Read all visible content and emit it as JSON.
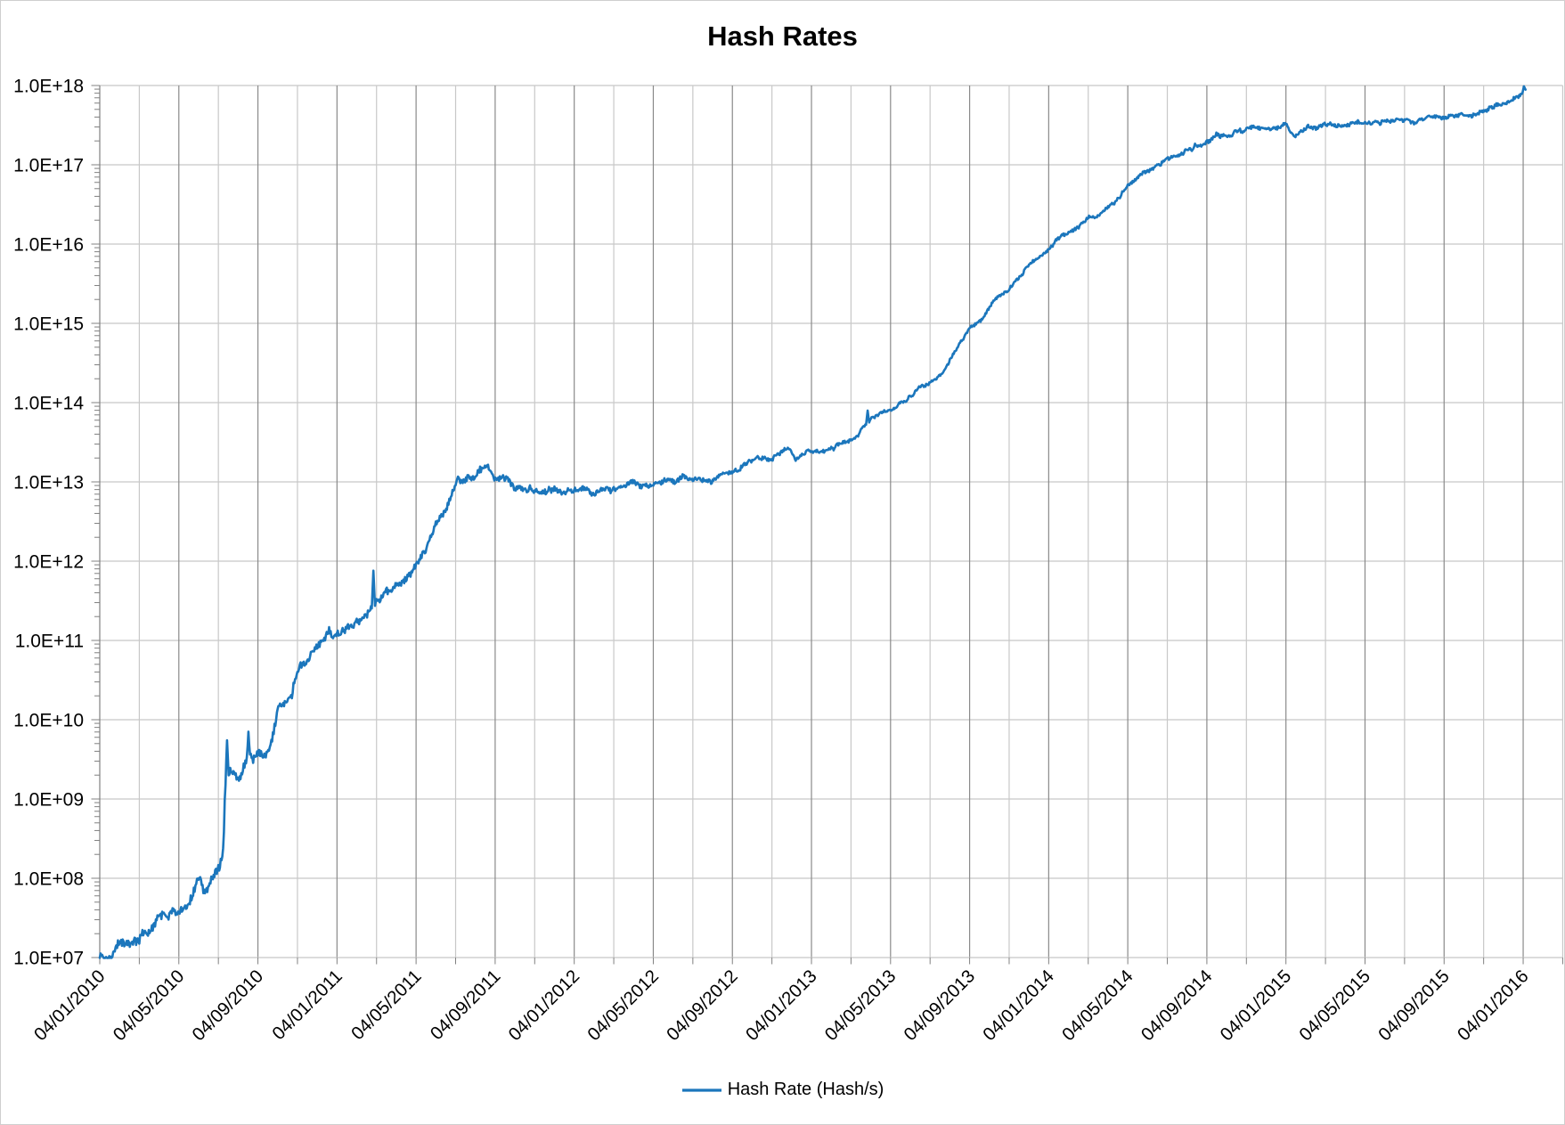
{
  "title": "Hash Rates",
  "legend": {
    "label": "Hash Rate (Hash/s)"
  },
  "colors": {
    "line": "#1B76BC",
    "grid_vertical_major": "#8A8A8A",
    "grid_vertical_minor": "#C8C8C8",
    "grid_horizontal": "#C8C8C8",
    "axis": "#808080",
    "tick": "#808080",
    "text": "#000000",
    "frame_border": "#CFCFCF"
  },
  "chart_data": {
    "type": "line",
    "title": "Hash Rates",
    "grid": true,
    "legend_entry": "Hash Rate (Hash/s)",
    "legend_position": "bottom-center",
    "x_axis": {
      "kind": "date",
      "date_format": "DD/MM/YYYY",
      "range_months": [
        0,
        74
      ],
      "label_interval_months": 4,
      "minor_gridline_interval_months": 2,
      "labels": [
        "04/01/2010",
        "04/05/2010",
        "04/09/2010",
        "04/01/2011",
        "04/05/2011",
        "04/09/2011",
        "04/01/2012",
        "04/05/2012",
        "04/09/2012",
        "04/01/2013",
        "04/05/2013",
        "04/09/2013",
        "04/01/2014",
        "04/05/2014",
        "04/09/2014",
        "04/01/2015",
        "04/05/2015",
        "04/09/2015",
        "04/01/2016"
      ],
      "label_rotation_deg": -45
    },
    "y_axis": {
      "scale": "log10",
      "log10_range": [
        7,
        18
      ],
      "labels": [
        "1.0E+18",
        "1.0E+17",
        "1.0E+16",
        "1.0E+15",
        "1.0E+14",
        "1.0E+13",
        "1.0E+12",
        "1.0E+11",
        "1.0E+10",
        "1.0E+09",
        "1.0E+08",
        "1.0E+07"
      ],
      "minor_log_ticks": true
    },
    "series": [
      {
        "name": "Hash Rate (Hash/s)",
        "color": "#1B76BC",
        "points_months_vs_log10": [
          [
            0,
            7.0
          ],
          [
            0.4,
            7.02
          ],
          [
            0.8,
            7.08
          ],
          [
            1,
            7.15
          ],
          [
            1.5,
            7.18
          ],
          [
            2,
            7.21
          ],
          [
            2.5,
            7.33
          ],
          [
            3,
            7.44
          ],
          [
            3.5,
            7.5
          ],
          [
            4.3,
            7.54
          ],
          [
            4.7,
            7.72
          ],
          [
            5,
            7.95
          ],
          [
            5.35,
            7.83
          ],
          [
            5.8,
            8.06
          ],
          [
            6.1,
            8.17
          ],
          [
            6.25,
            8.32
          ],
          [
            6.35,
            9.18
          ],
          [
            6.6,
            9.27
          ],
          [
            7,
            9.36
          ],
          [
            7.4,
            9.4
          ],
          [
            7.8,
            9.55
          ],
          [
            8,
            9.62
          ],
          [
            8.4,
            9.6
          ],
          [
            8.7,
            9.72
          ],
          [
            9,
            10.1
          ],
          [
            9.4,
            10.27
          ],
          [
            9.7,
            10.33
          ],
          [
            10,
            10.6
          ],
          [
            10.5,
            10.82
          ],
          [
            11,
            10.95
          ],
          [
            11.5,
            11.05
          ],
          [
            12,
            11.11
          ],
          [
            12.5,
            11.16
          ],
          [
            13,
            11.22
          ],
          [
            13.5,
            11.33
          ],
          [
            14,
            11.53
          ],
          [
            14.5,
            11.66
          ],
          [
            15,
            11.7
          ],
          [
            15.5,
            11.78
          ],
          [
            16,
            12.0
          ],
          [
            16.5,
            12.18
          ],
          [
            17,
            12.45
          ],
          [
            17.5,
            12.7
          ],
          [
            18,
            12.95
          ],
          [
            18.4,
            13.06
          ],
          [
            19,
            13.12
          ],
          [
            19.6,
            13.17
          ],
          [
            20,
            13.1
          ],
          [
            20.6,
            13.02
          ],
          [
            21,
            12.95
          ],
          [
            21.6,
            12.9
          ],
          [
            22.2,
            12.88
          ],
          [
            23,
            12.89
          ],
          [
            23.6,
            12.87
          ],
          [
            24,
            12.92
          ],
          [
            24.6,
            12.88
          ],
          [
            25.2,
            12.9
          ],
          [
            26,
            12.93
          ],
          [
            27,
            12.96
          ],
          [
            28,
            13.0
          ],
          [
            29,
            13.02
          ],
          [
            30,
            13.04
          ],
          [
            30.6,
            13.01
          ],
          [
            31.2,
            13.06
          ],
          [
            32,
            13.1
          ],
          [
            32.6,
            13.2
          ],
          [
            33.2,
            13.27
          ],
          [
            34,
            13.32
          ],
          [
            34.8,
            13.43
          ],
          [
            35.2,
            13.27
          ],
          [
            35.6,
            13.34
          ],
          [
            36,
            13.37
          ],
          [
            36.6,
            13.41
          ],
          [
            37.2,
            13.44
          ],
          [
            37.8,
            13.5
          ],
          [
            38.3,
            13.58
          ],
          [
            38.7,
            13.7
          ],
          [
            39,
            13.76
          ],
          [
            39.4,
            13.84
          ],
          [
            40,
            13.91
          ],
          [
            40.7,
            14.0
          ],
          [
            41.3,
            14.12
          ],
          [
            42,
            14.28
          ],
          [
            42.7,
            14.4
          ],
          [
            43.3,
            14.65
          ],
          [
            44,
            14.92
          ],
          [
            44.7,
            15.1
          ],
          [
            45.3,
            15.3
          ],
          [
            46,
            15.44
          ],
          [
            46.7,
            15.62
          ],
          [
            47.3,
            15.78
          ],
          [
            48,
            15.96
          ],
          [
            48.7,
            16.09
          ],
          [
            49.3,
            16.2
          ],
          [
            50,
            16.31
          ],
          [
            50.7,
            16.4
          ],
          [
            51.3,
            16.52
          ],
          [
            52,
            16.72
          ],
          [
            52.7,
            16.88
          ],
          [
            53.3,
            16.97
          ],
          [
            54,
            17.06
          ],
          [
            54.7,
            17.15
          ],
          [
            55.3,
            17.24
          ],
          [
            56,
            17.31
          ],
          [
            56.7,
            17.36
          ],
          [
            57.3,
            17.4
          ],
          [
            58,
            17.45
          ],
          [
            58.7,
            17.47
          ],
          [
            59.3,
            17.48
          ],
          [
            60,
            17.49
          ],
          [
            60.4,
            17.37
          ],
          [
            60.8,
            17.44
          ],
          [
            61.3,
            17.47
          ],
          [
            62,
            17.53
          ],
          [
            62.6,
            17.5
          ],
          [
            63.3,
            17.51
          ],
          [
            64,
            17.51
          ],
          [
            64.7,
            17.53
          ],
          [
            65.3,
            17.54
          ],
          [
            66,
            17.55
          ],
          [
            66.7,
            17.56
          ],
          [
            67.3,
            17.58
          ],
          [
            68,
            17.61
          ],
          [
            68.7,
            17.63
          ],
          [
            69.3,
            17.65
          ],
          [
            70,
            17.68
          ],
          [
            70.6,
            17.73
          ],
          [
            71.2,
            17.79
          ],
          [
            71.6,
            17.84
          ],
          [
            72.0,
            17.93
          ],
          [
            72.15,
            17.97
          ]
        ],
        "spikes_months_log10": [
          [
            6.42,
            9.74
          ],
          [
            7.5,
            9.85
          ],
          [
            13.82,
            11.88
          ],
          [
            38.85,
            13.9
          ],
          [
            72.05,
            17.99
          ]
        ],
        "noise_envelope_months_log10amp": [
          [
            0,
            0.1
          ],
          [
            6,
            0.1
          ],
          [
            9,
            0.09
          ],
          [
            12,
            0.085
          ],
          [
            18,
            0.075
          ],
          [
            22,
            0.07
          ],
          [
            26,
            0.055
          ],
          [
            32,
            0.05
          ],
          [
            36,
            0.045
          ],
          [
            40,
            0.035
          ],
          [
            46,
            0.035
          ],
          [
            52,
            0.04
          ],
          [
            58,
            0.045
          ],
          [
            64,
            0.042
          ],
          [
            72.2,
            0.04
          ]
        ]
      }
    ]
  }
}
